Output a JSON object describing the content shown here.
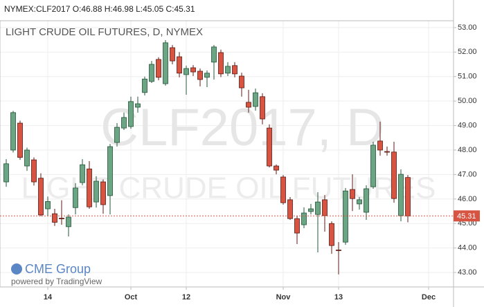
{
  "header": "NYMEX:CLF2017 O:46.88 H:46.98 L:45.05 C:45.31",
  "chart_data": {
    "type": "candlestick",
    "title": "LIGHT CRUDE OIL FUTURES, D, NYMEX",
    "watermark": "CLF2017, D",
    "watermark_subtitle": "LIGHT CRUDE OIL FUTURES",
    "branding": "CME Group",
    "powered_by": "powered by TradingView",
    "up_color": "#6ba583",
    "up_border": "#225437",
    "down_color": "#d75442",
    "down_border": "#5b1a13",
    "grid": true,
    "categories": [
      null,
      null,
      null,
      null,
      null,
      null,
      null,
      null,
      null,
      null,
      null,
      null,
      null,
      null,
      null,
      null,
      null,
      null,
      null,
      null,
      null,
      null,
      null,
      null,
      null,
      null,
      null,
      null,
      null,
      null,
      null,
      null,
      null,
      null,
      null,
      null,
      null,
      null,
      null,
      null,
      null,
      null,
      null,
      null,
      null,
      null,
      null,
      null,
      null,
      null,
      null,
      null,
      null,
      null,
      null,
      null,
      null,
      null,
      null
    ],
    "open": [
      46.7,
      48.0,
      49.1,
      47.35,
      47.6,
      46.85,
      45.6,
      45.4,
      45.22,
      44.87,
      45.65,
      46.67,
      47.23,
      45.88,
      46.7,
      46.14,
      48.31,
      48.9,
      48.96,
      49.75,
      50.35,
      50.8,
      51.7,
      50.71,
      52.18,
      51.81,
      51.08,
      51.36,
      51.22,
      50.97,
      51.59,
      51.98,
      51.14,
      51.45,
      51.02,
      49.95,
      49.78,
      50.18,
      48.9,
      47.35,
      46.9,
      45.97,
      45.2,
      44.95,
      45.49,
      45.37,
      45.97,
      45.0,
      43.92,
      44.24,
      46.39,
      45.8,
      45.46,
      46.5,
      48.37,
      47.94,
      47.92,
      45.32,
      46.88
    ],
    "high": [
      47.63,
      49.6,
      49.2,
      48.1,
      47.7,
      47.05,
      46.1,
      45.6,
      45.95,
      45.37,
      46.65,
      47.63,
      47.55,
      46.93,
      46.8,
      48.25,
      49.1,
      49.53,
      50.18,
      50.18,
      51.0,
      51.64,
      51.79,
      52.49,
      52.29,
      52.0,
      51.45,
      51.47,
      51.33,
      51.25,
      52.29,
      52.1,
      51.59,
      51.59,
      51.16,
      50.46,
      50.51,
      50.32,
      49.05,
      47.41,
      46.98,
      46.08,
      45.32,
      45.66,
      45.8,
      46.28,
      46.16,
      45.09,
      44.24,
      46.45,
      47.01,
      46.08,
      46.56,
      48.34,
      49.16,
      48.14,
      48.34,
      47.21,
      46.98
    ],
    "low": [
      46.5,
      47.9,
      47.6,
      47.15,
      46.55,
      45.3,
      45.3,
      44.9,
      44.95,
      44.47,
      45.37,
      46.56,
      45.6,
      45.65,
      45.4,
      45.37,
      48.14,
      48.82,
      48.87,
      49.53,
      50.23,
      50.74,
      50.85,
      50.63,
      51.5,
      50.97,
      50.26,
      51.02,
      50.6,
      50.57,
      50.88,
      50.98,
      51.02,
      50.97,
      50.18,
      49.53,
      49.61,
      49.05,
      47.29,
      47.01,
      45.77,
      45.15,
      44.16,
      44.81,
      45.37,
      43.82,
      44.67,
      43.76,
      42.92,
      44.13,
      45.51,
      45.57,
      45.15,
      46.42,
      47.77,
      47.77,
      45.85,
      45.09,
      45.05
    ],
    "close": [
      47.44,
      49.53,
      47.7,
      48.0,
      46.7,
      45.35,
      45.9,
      45.05,
      45.2,
      45.26,
      46.45,
      47.4,
      45.68,
      46.73,
      45.77,
      48.14,
      48.93,
      49.33,
      49.98,
      49.89,
      50.9,
      51.5,
      50.97,
      52.38,
      51.64,
      51.14,
      51.33,
      51.19,
      50.88,
      51.14,
      52.21,
      51.11,
      51.42,
      51.11,
      50.54,
      49.75,
      50.34,
      49.27,
      47.35,
      47.18,
      45.85,
      45.2,
      44.61,
      45.43,
      45.6,
      45.88,
      45.32,
      44.1,
      43.9,
      46.33,
      46.02,
      45.97,
      46.42,
      48.2,
      48.0,
      47.92,
      46.02,
      47.01,
      45.31
    ],
    "last_price": {
      "value": 45.31,
      "label": "45.31"
    },
    "xlim": [
      -0.9,
      64.6
    ],
    "xticks": [
      {
        "value": 6,
        "label": "14"
      },
      {
        "value": 18,
        "label": "Oct"
      },
      {
        "value": 26,
        "label": "12"
      },
      {
        "value": 40,
        "label": "Nov"
      },
      {
        "value": 48,
        "label": "13"
      },
      {
        "value": 61,
        "label": "Dec"
      }
    ],
    "ylim": [
      42.41,
      53.28
    ],
    "yticks": [
      {
        "value": 43,
        "label": "43.00"
      },
      {
        "value": 44,
        "label": "44.00"
      },
      {
        "value": 45,
        "label": "45.00"
      },
      {
        "value": 46,
        "label": "46.00"
      },
      {
        "value": 47,
        "label": "47.00"
      },
      {
        "value": 48,
        "label": "48.00"
      },
      {
        "value": 49,
        "label": "49.00"
      },
      {
        "value": 50,
        "label": "50.00"
      },
      {
        "value": 51,
        "label": "51.00"
      },
      {
        "value": 52,
        "label": "52.00"
      },
      {
        "value": 53,
        "label": "53.00"
      }
    ]
  }
}
